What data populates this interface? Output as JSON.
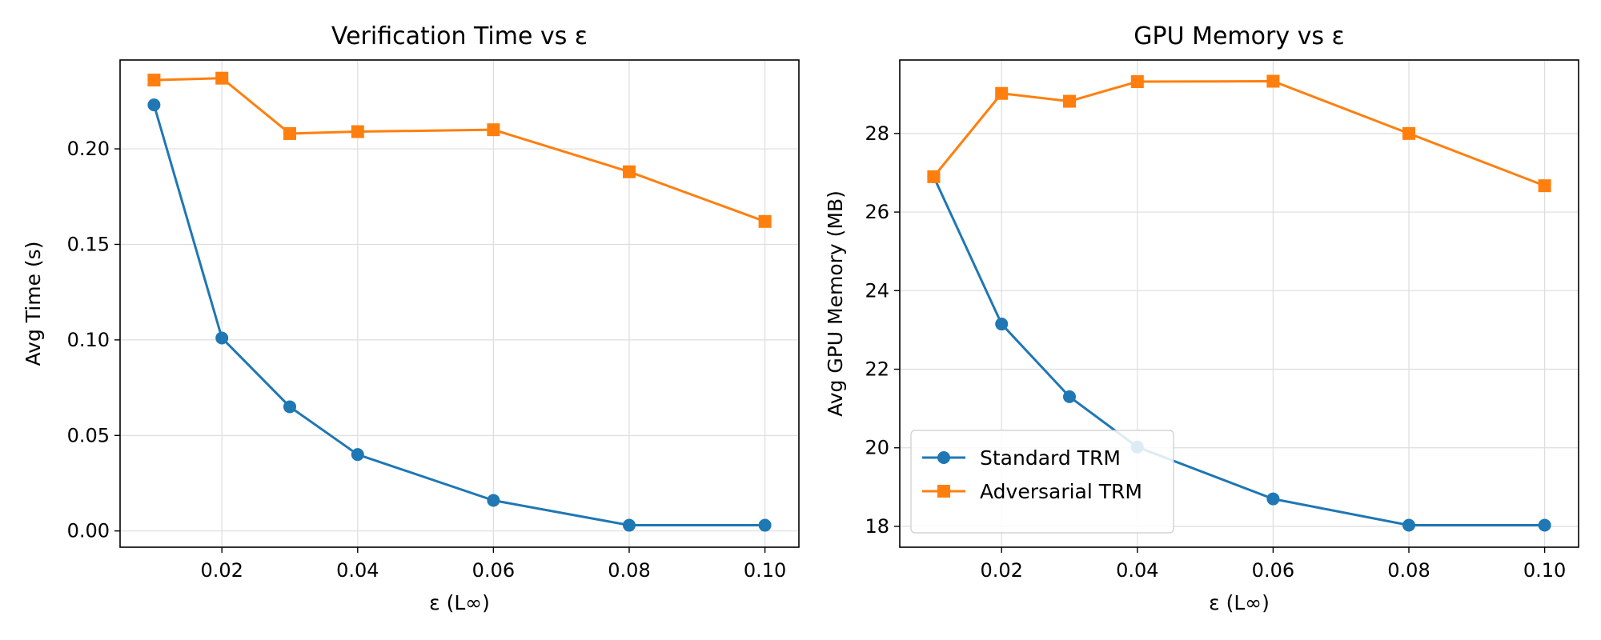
{
  "chart_data": [
    {
      "type": "line",
      "title": "Verification Time vs ε",
      "xlabel": "ε (L∞)",
      "ylabel": "Avg Time (s)",
      "x": [
        0.01,
        0.02,
        0.03,
        0.04,
        0.06,
        0.08,
        0.1
      ],
      "xlim": [
        0.005,
        0.105
      ],
      "ylim": [
        -0.0085,
        0.2465
      ],
      "xticks": [
        "0.02",
        "0.04",
        "0.06",
        "0.08",
        "0.10"
      ],
      "xtick_values": [
        0.02,
        0.04,
        0.06,
        0.08,
        0.1
      ],
      "yticks": [
        "0.00",
        "0.05",
        "0.10",
        "0.15",
        "0.20"
      ],
      "ytick_values": [
        0.0,
        0.05,
        0.1,
        0.15,
        0.2
      ],
      "grid": true,
      "series": [
        {
          "name": "Standard TRM",
          "color": "#1f77b4",
          "marker": "circle",
          "values": [
            0.223,
            0.101,
            0.065,
            0.04,
            0.016,
            0.003,
            0.003
          ]
        },
        {
          "name": "Adversarial TRM",
          "color": "#ff7f0e",
          "marker": "square",
          "values": [
            0.236,
            0.237,
            0.208,
            0.209,
            0.21,
            0.188,
            0.162
          ]
        }
      ]
    },
    {
      "type": "line",
      "title": "GPU Memory vs ε",
      "xlabel": "ε (L∞)",
      "ylabel": "Avg GPU Memory (MB)",
      "x": [
        0.01,
        0.02,
        0.03,
        0.04,
        0.06,
        0.08,
        0.1
      ],
      "xlim": [
        0.005,
        0.105
      ],
      "ylim": [
        17.47,
        29.87
      ],
      "xticks": [
        "0.02",
        "0.04",
        "0.06",
        "0.08",
        "0.10"
      ],
      "xtick_values": [
        0.02,
        0.04,
        0.06,
        0.08,
        0.1
      ],
      "yticks": [
        "18",
        "20",
        "22",
        "24",
        "26",
        "28"
      ],
      "ytick_values": [
        18,
        20,
        22,
        24,
        26,
        28
      ],
      "grid": true,
      "legend": "lower-left",
      "series": [
        {
          "name": "Standard TRM",
          "color": "#1f77b4",
          "marker": "circle",
          "values": [
            26.9,
            23.15,
            21.3,
            20.02,
            18.7,
            18.03,
            18.03
          ]
        },
        {
          "name": "Adversarial TRM",
          "color": "#ff7f0e",
          "marker": "square",
          "values": [
            26.9,
            29.02,
            28.82,
            29.32,
            29.33,
            28.0,
            26.67
          ]
        }
      ]
    }
  ]
}
